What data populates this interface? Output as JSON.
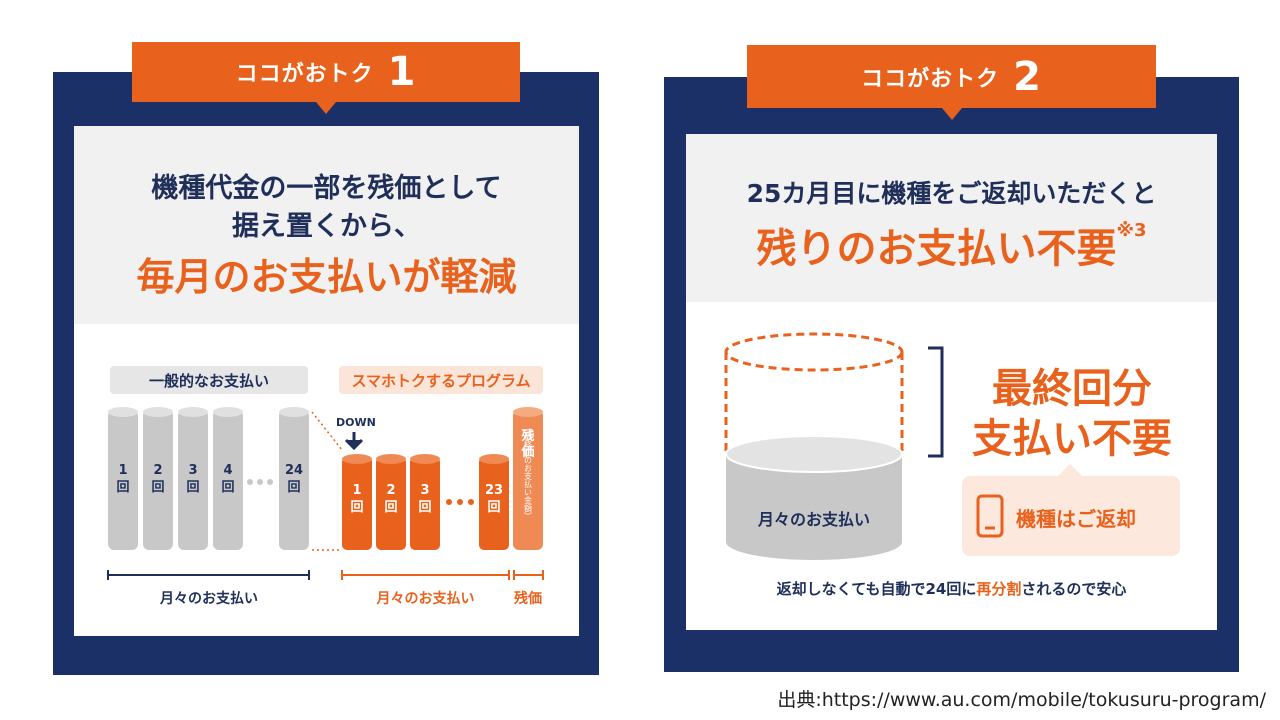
{
  "colors": {
    "navy": "#1a3067",
    "orange": "#e8621d",
    "gray": "#c8c8c8",
    "light": "#f1f1f1"
  },
  "left": {
    "tab_label": "ココがおトク",
    "tab_number": "1",
    "title_line1": "機種代金の一部を残価として",
    "title_line2": "据え置くから、",
    "highlight": "毎月のお支払いが軽減",
    "normal_label": "一般的なお支払い",
    "program_label": "スマホトクするプログラム",
    "down_label": "DOWN",
    "normal_cols": [
      "1\n回",
      "2\n回",
      "3\n回",
      "4\n回",
      "24\n回"
    ],
    "program_cols": [
      "1\n回",
      "2\n回",
      "3\n回",
      "23\n回"
    ],
    "residual_label": "残価",
    "residual_sub": "（最終回のお支払い金額）",
    "monthly_label_normal": "月々のお支払い",
    "monthly_label_program": "月々のお支払い",
    "residual_bottom": "残価"
  },
  "right": {
    "tab_label": "ココがおトク",
    "tab_number": "2",
    "title_line1": "25カ月目に機種をご返却いただくと",
    "highlight": "残りのお支払い不要",
    "note": "※3",
    "cylinder_label": "月々のお支払い",
    "final_line1": "最終回分",
    "final_line2": "支払い不要",
    "return_label": "機種はご返却",
    "phone_icon": "smartphone-icon",
    "footer_prefix": "返却しなくても自動で24回に",
    "footer_highlight": "再分割",
    "footer_suffix": "されるので安心"
  },
  "source": "出典:https://www.au.com/mobile/tokusuru-program/"
}
